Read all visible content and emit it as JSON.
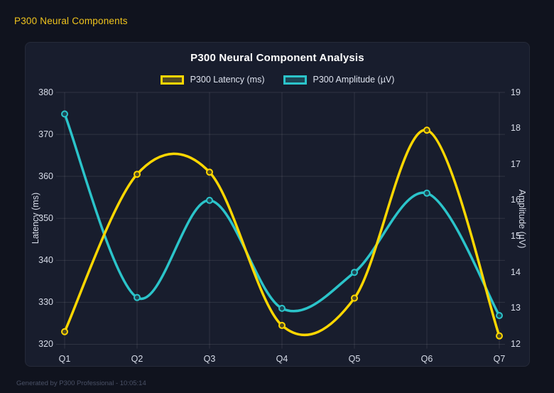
{
  "header": {
    "title": "P300 Neural Components"
  },
  "chart": {
    "title": "P300 Neural Component Analysis"
  },
  "chart_data": {
    "type": "line",
    "title": "P300 Neural Component Analysis",
    "categories": [
      "Q1",
      "Q2",
      "Q3",
      "Q4",
      "Q5",
      "Q6",
      "Q7"
    ],
    "series": [
      {
        "name": "P300 Latency (ms)",
        "axis": "left",
        "color": "#ffd700",
        "fill": "rgba(255,215,0,0.25)",
        "values": [
          323,
          360.5,
          361,
          324.5,
          331,
          371,
          322
        ]
      },
      {
        "name": "P300 Amplitude (µV)",
        "axis": "right",
        "color": "#2bc4ca",
        "fill": "rgba(43,196,202,0.25)",
        "values": [
          18.4,
          13.3,
          16.0,
          13.0,
          14.0,
          16.2,
          12.8
        ]
      }
    ],
    "left_axis": {
      "label": "Latency (ms)",
      "range": [
        320,
        380
      ],
      "ticks": [
        380,
        370,
        360,
        350,
        340,
        330,
        320
      ]
    },
    "right_axis": {
      "label": "Amplitude (µV)",
      "range": [
        12,
        19
      ],
      "ticks": [
        19,
        18,
        17,
        16,
        15,
        14,
        13,
        12
      ]
    },
    "grid": true,
    "legend_position": "top",
    "curve": "smooth"
  },
  "footer": {
    "text": "Generated by P300 Professional - 10:05:14"
  },
  "colors": {
    "background": "#10131e",
    "panel": "#181d2d",
    "accent_yellow": "#ffd700",
    "accent_teal": "#2bc4ca",
    "grid": "rgba(255,255,255,0.10)"
  }
}
